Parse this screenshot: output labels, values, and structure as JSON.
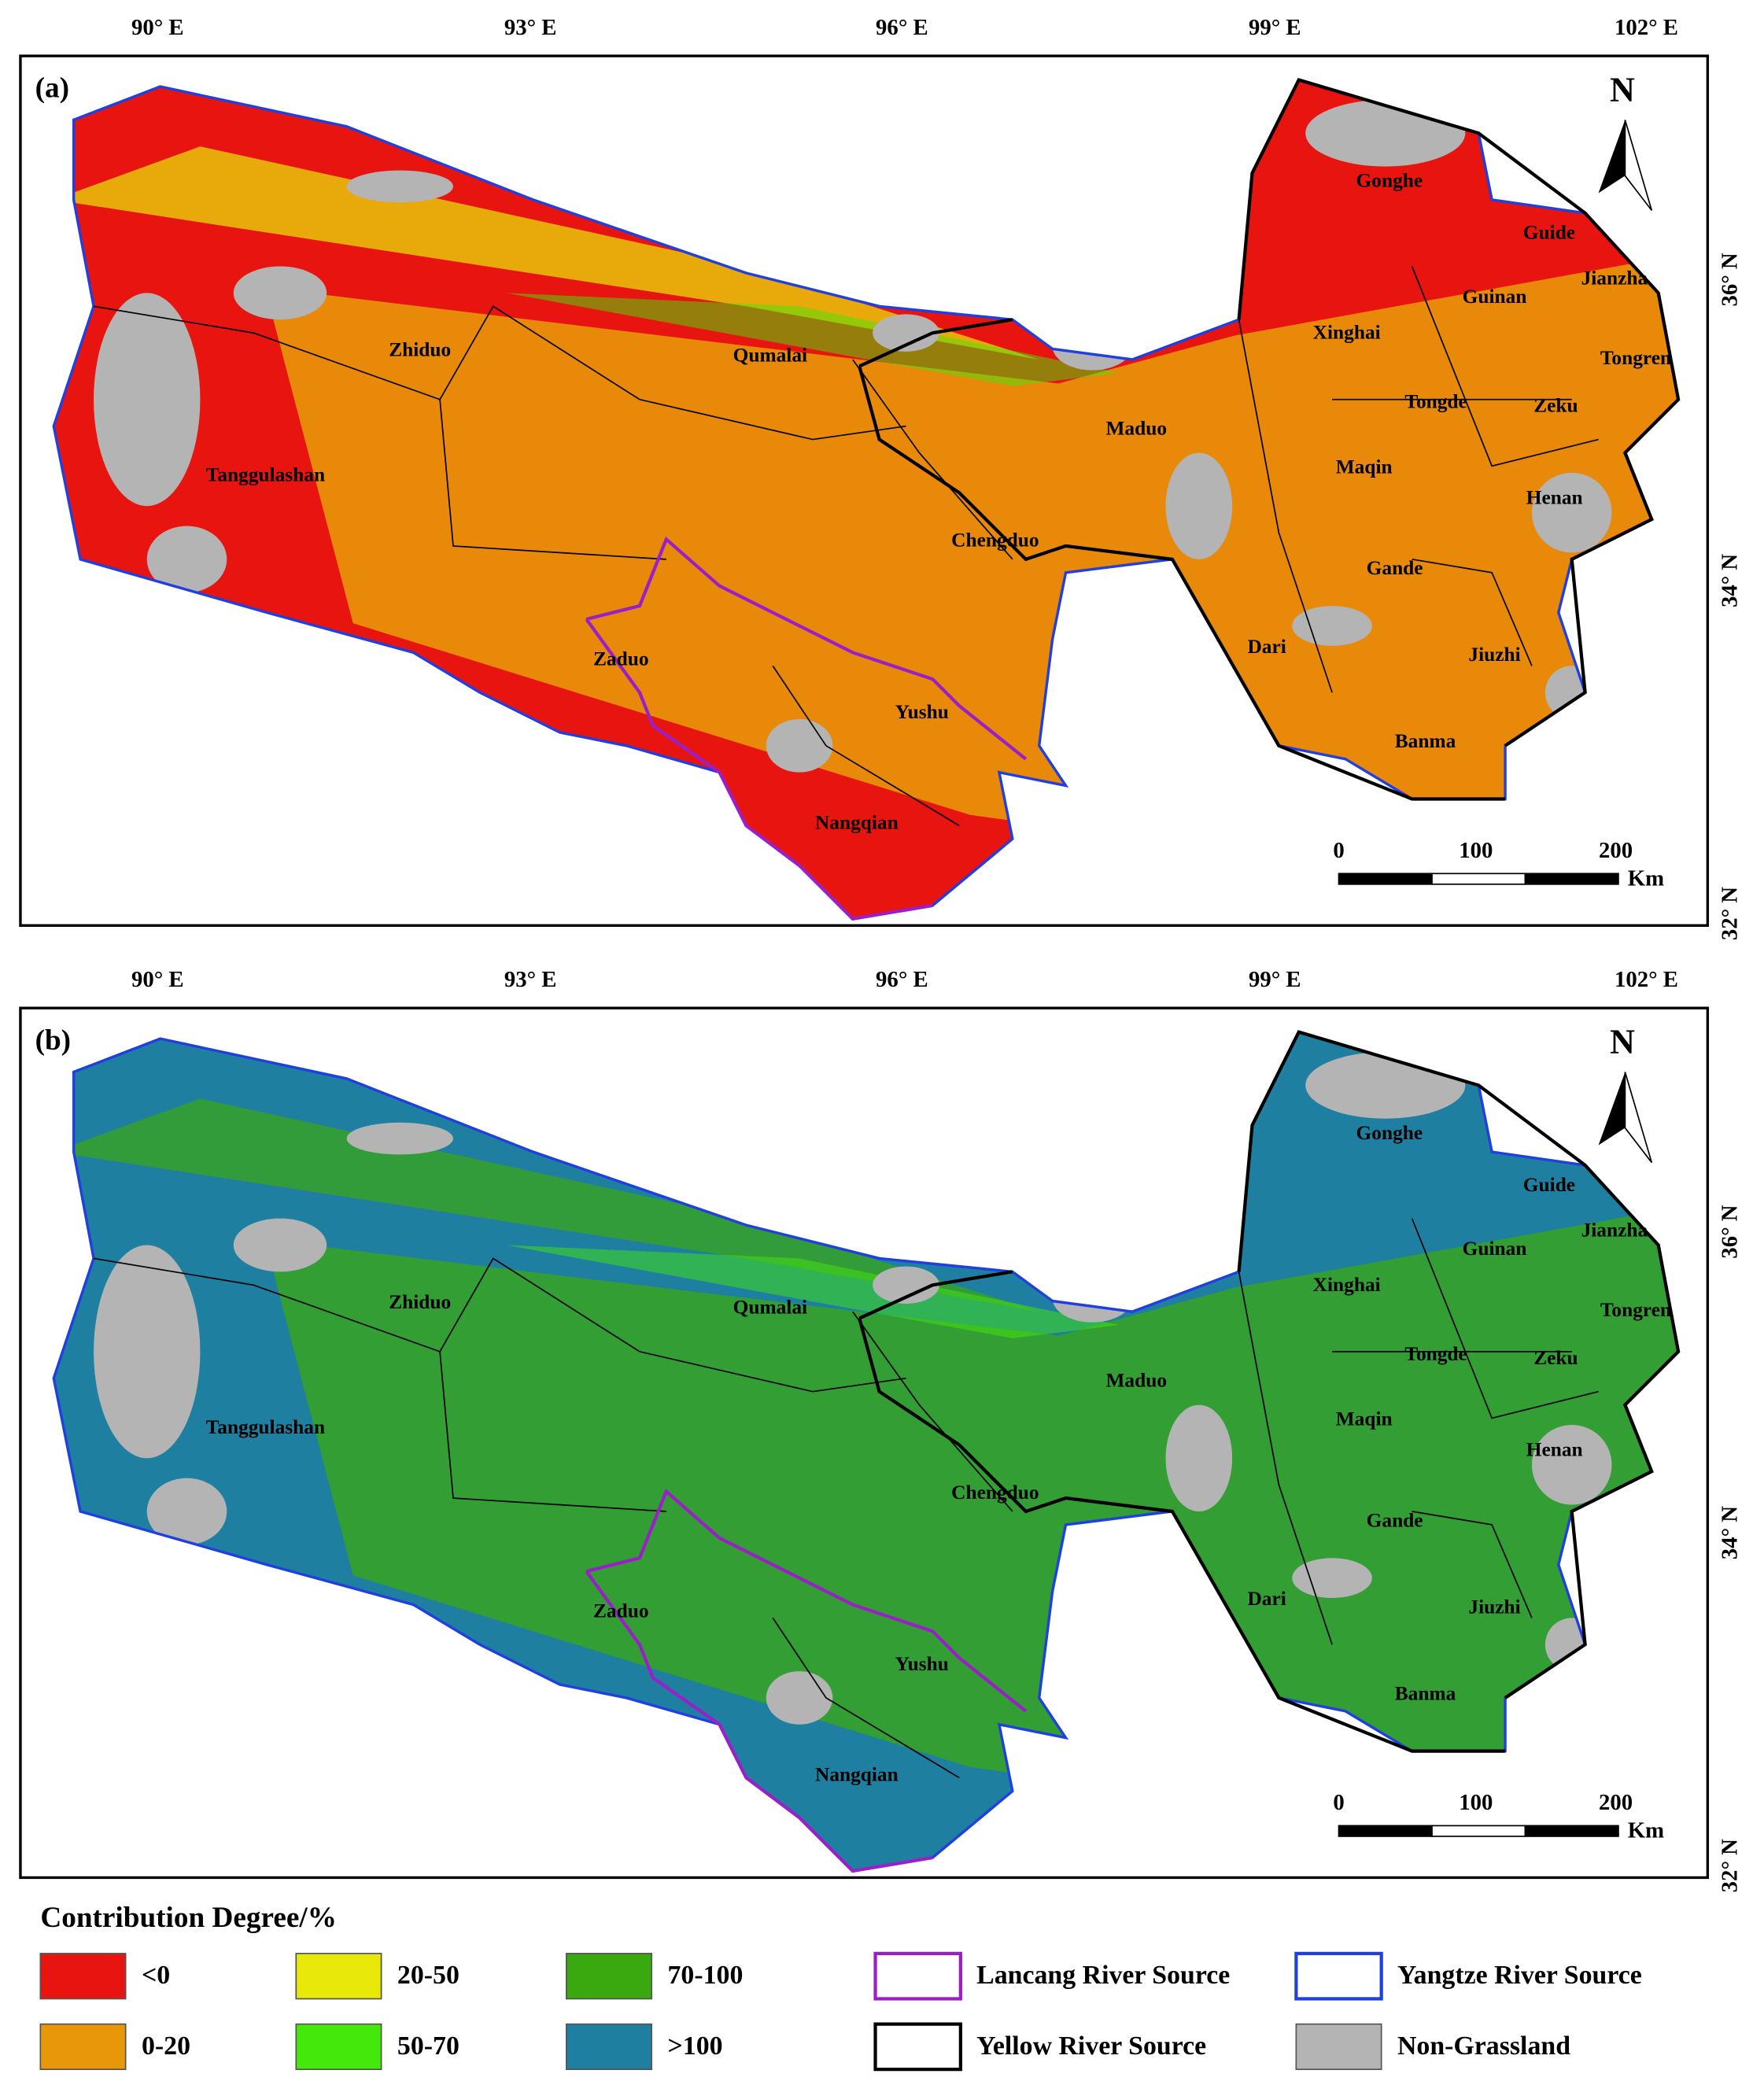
{
  "panels": [
    {
      "label": "(a)",
      "lon_labels": [
        "90° E",
        "93° E",
        "96° E",
        "99° E",
        "102° E"
      ],
      "lat_labels": [
        "36° N",
        "34° N",
        "32° N"
      ],
      "north": "N",
      "scale": {
        "ticks": [
          "0",
          "100",
          "200"
        ],
        "unit": "Km"
      },
      "places": [
        "Gonghe",
        "Guide",
        "Jianzha",
        "Guinan",
        "Xinghai",
        "Tongren",
        "Zhiduo",
        "Qumalai",
        "Tongde",
        "Zeku",
        "Maduo",
        "Maqin",
        "Tanggulashan",
        "Henan",
        "Chengduo",
        "Gande",
        "Dari",
        "Jiuzhi",
        "Zaduo",
        "Yushu",
        "Banma",
        "Nangqian"
      ]
    },
    {
      "label": "(b)",
      "lon_labels": [
        "90° E",
        "93° E",
        "96° E",
        "99° E",
        "102° E"
      ],
      "lat_labels": [
        "36° N",
        "34° N",
        "32° N"
      ],
      "north": "N",
      "scale": {
        "ticks": [
          "0",
          "100",
          "200"
        ],
        "unit": "Km"
      },
      "places": [
        "Gonghe",
        "Guide",
        "Jianzha",
        "Guinan",
        "Xinghai",
        "Tongren",
        "Zhiduo",
        "Qumalai",
        "Tongde",
        "Zeku",
        "Maduo",
        "Maqin",
        "Tanggulashan",
        "Henan",
        "Chengduo",
        "Gande",
        "Dari",
        "Jiuzhi",
        "Zaduo",
        "Yushu",
        "Banma",
        "Nangqian"
      ]
    }
  ],
  "legend": {
    "title": "Contribution Degree/%",
    "items": [
      {
        "label": "<0",
        "color": "#e8140f",
        "kind": "fill"
      },
      {
        "label": "0-20",
        "color": "#e8960a",
        "kind": "fill"
      },
      {
        "label": "20-50",
        "color": "#e8e80a",
        "kind": "fill"
      },
      {
        "label": "50-70",
        "color": "#44e80a",
        "kind": "fill"
      },
      {
        "label": "70-100",
        "color": "#3aa80f",
        "kind": "fill"
      },
      {
        "label": ">100",
        "color": "#1e7fa0",
        "kind": "fill"
      },
      {
        "label": "Lancang River Source",
        "color": "#9b1fc9",
        "kind": "outline"
      },
      {
        "label": "Yellow River Source",
        "color": "#000000",
        "kind": "outline"
      },
      {
        "label": "Yangtze River Source",
        "color": "#1f3fe0",
        "kind": "outline"
      },
      {
        "label": "Non-Grassland",
        "color": "#b4b4b4",
        "kind": "fill"
      }
    ]
  }
}
